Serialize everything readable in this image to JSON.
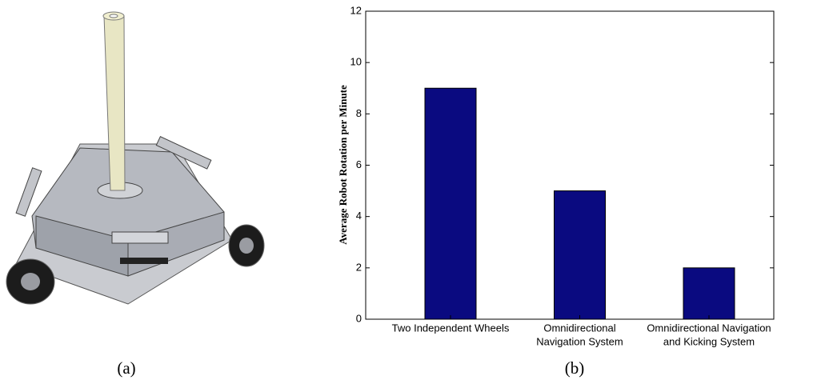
{
  "captions": [
    "(a)",
    "(b)"
  ],
  "chart_data": {
    "type": "bar",
    "ylabel": "Average Robot Rotation per Minute",
    "categories": [
      [
        "Two Independent Wheels"
      ],
      [
        "Omnidirectional",
        "Navigation System"
      ],
      [
        "Omnidirectional Navigation",
        "and Kicking System"
      ]
    ],
    "values": [
      9,
      5,
      2
    ],
    "color": "#0a0a80",
    "ylim": [
      0,
      12
    ],
    "yticks": [
      0,
      2,
      4,
      6,
      8,
      10,
      12
    ],
    "grid": false
  }
}
